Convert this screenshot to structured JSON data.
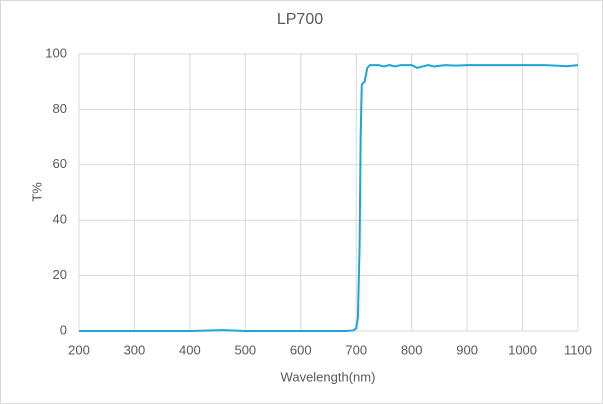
{
  "chart_data": {
    "type": "line",
    "title": "LP700",
    "x_label": "Wavelength(nm)",
    "y_label": "T%",
    "x": [
      200,
      300,
      400,
      460,
      500,
      600,
      680,
      695,
      700,
      703,
      706,
      708,
      710,
      715,
      720,
      725,
      740,
      750,
      760,
      770,
      780,
      800,
      810,
      820,
      830,
      840,
      860,
      880,
      900,
      950,
      1000,
      1040,
      1060,
      1080,
      1100
    ],
    "series": [
      {
        "name": "LP700",
        "color": "#1ca6d6",
        "values": [
          0,
          0,
          0,
          0.3,
          0,
          0,
          0,
          0.2,
          1,
          5,
          30,
          70,
          89,
          90,
          95,
          96,
          96,
          95.5,
          96,
          95.5,
          96,
          96,
          95,
          95.5,
          96,
          95.5,
          96,
          95.8,
          96,
          96,
          96,
          96,
          95.8,
          95.6,
          96
        ]
      }
    ],
    "xlim": [
      200,
      1100
    ],
    "xticks": [
      200,
      300,
      400,
      500,
      600,
      700,
      800,
      900,
      1000,
      1100
    ],
    "ylim": [
      0,
      100
    ],
    "yticks": [
      0,
      20,
      40,
      60,
      80,
      100
    ],
    "grid": true
  }
}
